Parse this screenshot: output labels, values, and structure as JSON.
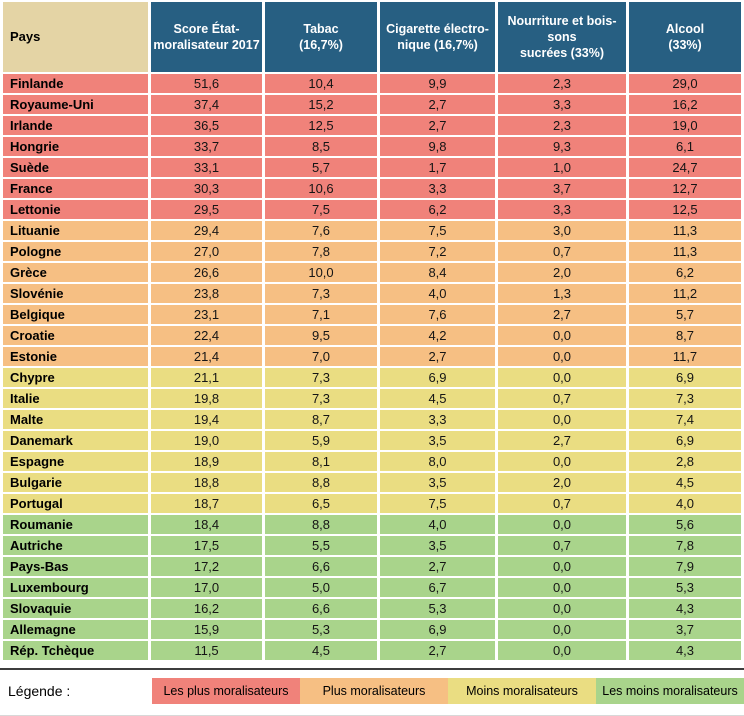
{
  "colors": {
    "header-blue": "#275F82",
    "header-tan": "#E4D4A5",
    "red": "#F0827A",
    "orange": "#F6BF83",
    "yellow": "#EADD82",
    "green": "#A9D48B"
  },
  "chart_data": {
    "type": "table",
    "columns": [
      "Pays",
      "Score État-\nmoralisateur 2017",
      "Tabac\n(16,7%)",
      "Cigarette électro-\nnique (16,7%)",
      "Nourriture et bois-\nsons\nsucrées (33%)",
      "Alcool\n(33%)"
    ],
    "value_keys": [
      "score",
      "tabac",
      "cigarette_electronique",
      "nourriture_boissons",
      "alcool"
    ],
    "rows": [
      {
        "pays": "Finlande",
        "score": "51,6",
        "tabac": "10,4",
        "cigarette_electronique": "9,9",
        "nourriture_boissons": "2,3",
        "alcool": "29,0",
        "group": "red"
      },
      {
        "pays": "Royaume-Uni",
        "score": "37,4",
        "tabac": "15,2",
        "cigarette_electronique": "2,7",
        "nourriture_boissons": "3,3",
        "alcool": "16,2",
        "group": "red"
      },
      {
        "pays": "Irlande",
        "score": "36,5",
        "tabac": "12,5",
        "cigarette_electronique": "2,7",
        "nourriture_boissons": "2,3",
        "alcool": "19,0",
        "group": "red"
      },
      {
        "pays": "Hongrie",
        "score": "33,7",
        "tabac": "8,5",
        "cigarette_electronique": "9,8",
        "nourriture_boissons": "9,3",
        "alcool": "6,1",
        "group": "red"
      },
      {
        "pays": "Suède",
        "score": "33,1",
        "tabac": "5,7",
        "cigarette_electronique": "1,7",
        "nourriture_boissons": "1,0",
        "alcool": "24,7",
        "group": "red"
      },
      {
        "pays": "France",
        "score": "30,3",
        "tabac": "10,6",
        "cigarette_electronique": "3,3",
        "nourriture_boissons": "3,7",
        "alcool": "12,7",
        "group": "red"
      },
      {
        "pays": "Lettonie",
        "score": "29,5",
        "tabac": "7,5",
        "cigarette_electronique": "6,2",
        "nourriture_boissons": "3,3",
        "alcool": "12,5",
        "group": "red"
      },
      {
        "pays": "Lituanie",
        "score": "29,4",
        "tabac": "7,6",
        "cigarette_electronique": "7,5",
        "nourriture_boissons": "3,0",
        "alcool": "11,3",
        "group": "orange"
      },
      {
        "pays": "Pologne",
        "score": "27,0",
        "tabac": "7,8",
        "cigarette_electronique": "7,2",
        "nourriture_boissons": "0,7",
        "alcool": "11,3",
        "group": "orange"
      },
      {
        "pays": "Grèce",
        "score": "26,6",
        "tabac": "10,0",
        "cigarette_electronique": "8,4",
        "nourriture_boissons": "2,0",
        "alcool": "6,2",
        "group": "orange"
      },
      {
        "pays": "Slovénie",
        "score": "23,8",
        "tabac": "7,3",
        "cigarette_electronique": "4,0",
        "nourriture_boissons": "1,3",
        "alcool": "11,2",
        "group": "orange"
      },
      {
        "pays": "Belgique",
        "score": "23,1",
        "tabac": "7,1",
        "cigarette_electronique": "7,6",
        "nourriture_boissons": "2,7",
        "alcool": "5,7",
        "group": "orange"
      },
      {
        "pays": "Croatie",
        "score": "22,4",
        "tabac": "9,5",
        "cigarette_electronique": "4,2",
        "nourriture_boissons": "0,0",
        "alcool": "8,7",
        "group": "orange"
      },
      {
        "pays": "Estonie",
        "score": "21,4",
        "tabac": "7,0",
        "cigarette_electronique": "2,7",
        "nourriture_boissons": "0,0",
        "alcool": "11,7",
        "group": "orange"
      },
      {
        "pays": "Chypre",
        "score": "21,1",
        "tabac": "7,3",
        "cigarette_electronique": "6,9",
        "nourriture_boissons": "0,0",
        "alcool": "6,9",
        "group": "yellow"
      },
      {
        "pays": "Italie",
        "score": "19,8",
        "tabac": "7,3",
        "cigarette_electronique": "4,5",
        "nourriture_boissons": "0,7",
        "alcool": "7,3",
        "group": "yellow"
      },
      {
        "pays": "Malte",
        "score": "19,4",
        "tabac": "8,7",
        "cigarette_electronique": "3,3",
        "nourriture_boissons": "0,0",
        "alcool": "7,4",
        "group": "yellow"
      },
      {
        "pays": "Danemark",
        "score": "19,0",
        "tabac": "5,9",
        "cigarette_electronique": "3,5",
        "nourriture_boissons": "2,7",
        "alcool": "6,9",
        "group": "yellow"
      },
      {
        "pays": "Espagne",
        "score": "18,9",
        "tabac": "8,1",
        "cigarette_electronique": "8,0",
        "nourriture_boissons": "0,0",
        "alcool": "2,8",
        "group": "yellow"
      },
      {
        "pays": "Bulgarie",
        "score": "18,8",
        "tabac": "8,8",
        "cigarette_electronique": "3,5",
        "nourriture_boissons": "2,0",
        "alcool": "4,5",
        "group": "yellow"
      },
      {
        "pays": "Portugal",
        "score": "18,7",
        "tabac": "6,5",
        "cigarette_electronique": "7,5",
        "nourriture_boissons": "0,7",
        "alcool": "4,0",
        "group": "yellow"
      },
      {
        "pays": "Roumanie",
        "score": "18,4",
        "tabac": "8,8",
        "cigarette_electronique": "4,0",
        "nourriture_boissons": "0,0",
        "alcool": "5,6",
        "group": "green"
      },
      {
        "pays": "Autriche",
        "score": "17,5",
        "tabac": "5,5",
        "cigarette_electronique": "3,5",
        "nourriture_boissons": "0,7",
        "alcool": "7,8",
        "group": "green"
      },
      {
        "pays": "Pays-Bas",
        "score": "17,2",
        "tabac": "6,6",
        "cigarette_electronique": "2,7",
        "nourriture_boissons": "0,0",
        "alcool": "7,9",
        "group": "green"
      },
      {
        "pays": "Luxembourg",
        "score": "17,0",
        "tabac": "5,0",
        "cigarette_electronique": "6,7",
        "nourriture_boissons": "0,0",
        "alcool": "5,3",
        "group": "green"
      },
      {
        "pays": "Slovaquie",
        "score": "16,2",
        "tabac": "6,6",
        "cigarette_electronique": "5,3",
        "nourriture_boissons": "0,0",
        "alcool": "4,3",
        "group": "green"
      },
      {
        "pays": "Allemagne",
        "score": "15,9",
        "tabac": "5,3",
        "cigarette_electronique": "6,9",
        "nourriture_boissons": "0,0",
        "alcool": "3,7",
        "group": "green"
      },
      {
        "pays": "Rép. Tchèque",
        "score": "11,5",
        "tabac": "4,5",
        "cigarette_electronique": "2,7",
        "nourriture_boissons": "0,0",
        "alcool": "4,3",
        "group": "green"
      }
    ],
    "legend": {
      "title": "Légende :",
      "items": [
        {
          "label": "Les plus moralisateurs",
          "color": "red"
        },
        {
          "label": "Plus moralisateurs",
          "color": "orange"
        },
        {
          "label": "Moins moralisateurs",
          "color": "yellow"
        },
        {
          "label": "Les moins moralisateurs",
          "color": "green"
        }
      ]
    }
  }
}
